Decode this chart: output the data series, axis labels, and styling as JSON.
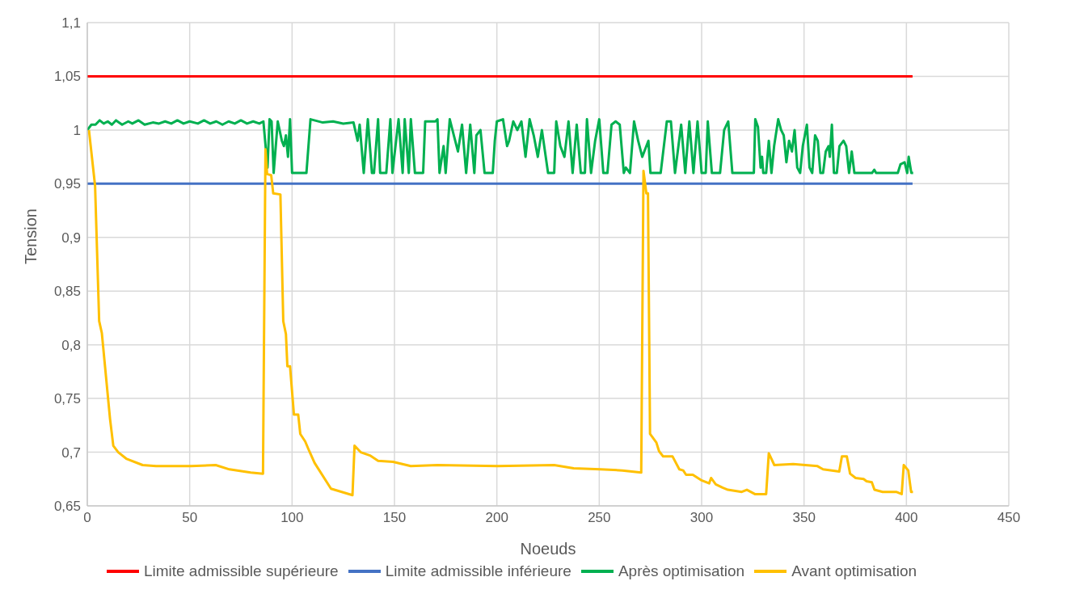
{
  "chart_data": {
    "type": "line",
    "xlabel": "Noeuds",
    "ylabel": "Tension",
    "xlim": [
      0,
      450
    ],
    "xticks": [
      0,
      50,
      100,
      150,
      200,
      250,
      300,
      350,
      400,
      450
    ],
    "ylim": [
      0.65,
      1.1
    ],
    "yticks": [
      {
        "value": 0.65,
        "label": "0,65"
      },
      {
        "value": 0.7,
        "label": "0,7"
      },
      {
        "value": 0.75,
        "label": "0,75"
      },
      {
        "value": 0.8,
        "label": "0,8"
      },
      {
        "value": 0.85,
        "label": "0,85"
      },
      {
        "value": 0.9,
        "label": "0,9"
      },
      {
        "value": 0.95,
        "label": "0,95"
      },
      {
        "value": 1,
        "label": "1"
      },
      {
        "value": 1.05,
        "label": "1,05"
      },
      {
        "value": 1.1,
        "label": "1,1"
      }
    ],
    "grid": true,
    "legend": "bottom",
    "marker": "none",
    "line_style": "solid",
    "series": [
      {
        "name": "Limite admissible supérieure",
        "color": "#ff0000",
        "x": [
          0,
          403
        ],
        "values": [
          1.05,
          1.05
        ]
      },
      {
        "name": "Limite admissible inférieure",
        "color": "#4472c4",
        "x": [
          0,
          403
        ],
        "values": [
          0.95,
          0.95
        ]
      },
      {
        "name": "Après optimisation",
        "color": "#00b050",
        "x": [
          0,
          2,
          4,
          6,
          8,
          10,
          12,
          14,
          17,
          20,
          22,
          25,
          28,
          32,
          35,
          38,
          41,
          44,
          47,
          50,
          54,
          57,
          60,
          63,
          66,
          69,
          72,
          75,
          78,
          81,
          84,
          86,
          88,
          89,
          90,
          91,
          93,
          95,
          96,
          97,
          98,
          99,
          100,
          107,
          109,
          115,
          120,
          125,
          130,
          132,
          133,
          135,
          137,
          139,
          140,
          142,
          143,
          146,
          148,
          149,
          152,
          154,
          155,
          157,
          158,
          160,
          164,
          165,
          170,
          171,
          172,
          174,
          175,
          177,
          179,
          181,
          183,
          185,
          187,
          189,
          190,
          192,
          194,
          198,
          199,
          200,
          203,
          205,
          206,
          208,
          210,
          212,
          214,
          216,
          218,
          220,
          222,
          225,
          228,
          229,
          231,
          233,
          235,
          237,
          239,
          241,
          243,
          244,
          246,
          248,
          250,
          252,
          254,
          256,
          258,
          260,
          262,
          263,
          265,
          267,
          269,
          271,
          272,
          274,
          275,
          280,
          283,
          285,
          287,
          290,
          292,
          294,
          296,
          298,
          300,
          302,
          303,
          305,
          307,
          309,
          311,
          313,
          315,
          325.5,
          326.2,
          327.5,
          328.8,
          329.5,
          330.1,
          331.5,
          332.8,
          334.1,
          335.4,
          337.4,
          338.8,
          340.1,
          341.4,
          342.7,
          344.1,
          345.4,
          346.7,
          348.1,
          349.4,
          351.4,
          352.7,
          354,
          355.4,
          356.7,
          358,
          359.3,
          360.6,
          362,
          362.6,
          363.6,
          364.6,
          366,
          367.3,
          369.3,
          370.6,
          372,
          373.3,
          374.6,
          383.2,
          384.3,
          385.2,
          395.8,
          397.1,
          399.1,
          400.4,
          401.1,
          402.4,
          403.3
        ],
        "values": [
          1.0,
          1.005,
          1.005,
          1.009,
          1.006,
          1.008,
          1.005,
          1.009,
          1.005,
          1.008,
          1.006,
          1.009,
          1.005,
          1.007,
          1.006,
          1.008,
          1.006,
          1.009,
          1.006,
          1.008,
          1.006,
          1.009,
          1.006,
          1.008,
          1.005,
          1.008,
          1.006,
          1.009,
          1.006,
          1.008,
          1.006,
          1.008,
          0.965,
          1.01,
          1.008,
          0.96,
          1.008,
          0.99,
          0.985,
          0.995,
          0.975,
          1.01,
          0.96,
          0.96,
          1.01,
          1.007,
          1.008,
          1.006,
          1.007,
          0.99,
          1.005,
          0.96,
          1.01,
          0.96,
          0.96,
          1.01,
          0.96,
          0.96,
          1.01,
          0.96,
          1.01,
          0.96,
          1.01,
          0.96,
          1.01,
          0.96,
          0.96,
          1.008,
          1.008,
          1.01,
          0.96,
          0.985,
          0.96,
          1.01,
          0.995,
          0.98,
          1.005,
          0.96,
          1.005,
          0.96,
          0.995,
          1.0,
          0.96,
          0.96,
          0.99,
          1.008,
          1.01,
          0.985,
          0.99,
          1.008,
          1.0,
          1.008,
          0.975,
          1.01,
          0.995,
          0.975,
          1.0,
          0.96,
          0.96,
          1.008,
          0.985,
          0.975,
          1.008,
          0.96,
          1.005,
          0.96,
          0.96,
          1.01,
          0.96,
          0.99,
          1.01,
          0.96,
          0.96,
          1.005,
          1.008,
          1.005,
          0.96,
          0.965,
          0.96,
          1.008,
          0.99,
          0.975,
          0.98,
          0.99,
          0.96,
          0.96,
          1.008,
          1.008,
          0.96,
          1.005,
          0.96,
          1.008,
          0.96,
          1.008,
          0.96,
          0.96,
          1.008,
          0.96,
          0.96,
          0.96,
          1.0,
          1.008,
          0.96,
          0.96,
          1.01,
          1.003,
          0.965,
          0.975,
          0.96,
          0.96,
          0.99,
          0.96,
          0.985,
          1.01,
          1.0,
          0.995,
          0.97,
          0.99,
          0.98,
          1.0,
          0.965,
          0.96,
          0.985,
          1.005,
          0.965,
          0.96,
          0.995,
          0.99,
          0.96,
          0.96,
          0.98,
          0.985,
          0.975,
          1.005,
          0.96,
          0.96,
          0.985,
          0.99,
          0.985,
          0.96,
          0.98,
          0.96,
          0.96,
          0.963,
          0.96,
          0.96,
          0.968,
          0.97,
          0.96,
          0.975,
          0.96,
          0.96
        ]
      },
      {
        "name": "Avant optimisation",
        "color": "#ffc000",
        "x": [
          0.8,
          3.8,
          5.8,
          7.1,
          11.1,
          12.7,
          15.1,
          19,
          27,
          33.6,
          50.8,
          62.7,
          69.4,
          79.8,
          85.8,
          87,
          87.8,
          89.8,
          90.8,
          94.3,
          95.7,
          97,
          97.7,
          99,
          100.9,
          103,
          104,
          106.4,
          108.4,
          111,
          119,
          129.5,
          130.5,
          133.5,
          138,
          142,
          149.3,
          158,
          171,
          200.4,
          228,
          237.5,
          250.6,
          261.3,
          270.5,
          271.6,
          273,
          273.8,
          274.8,
          277.9,
          279.2,
          281.2,
          285.8,
          289.1,
          291,
          292.4,
          295.7,
          299.7,
          303.7,
          304.6,
          306.9,
          310.2,
          312.8,
          319.6,
          322.1,
          326,
          331.5,
          332.8,
          335.5,
          344.7,
          356.6,
          359.3,
          367.2,
          368.5,
          370.9,
          372.5,
          375.2,
          379.1,
          380.5,
          383.1,
          384.4,
          388.4,
          395,
          397.7,
          398.7,
          400.9,
          402.3,
          403.2
        ],
        "values": [
          1.0,
          0.948,
          0.822,
          0.811,
          0.731,
          0.706,
          0.7,
          0.694,
          0.688,
          0.687,
          0.687,
          0.688,
          0.684,
          0.681,
          0.68,
          0.982,
          0.959,
          0.958,
          0.941,
          0.94,
          0.822,
          0.81,
          0.78,
          0.78,
          0.735,
          0.735,
          0.717,
          0.71,
          0.701,
          0.69,
          0.666,
          0.66,
          0.706,
          0.7,
          0.697,
          0.692,
          0.691,
          0.687,
          0.688,
          0.687,
          0.688,
          0.685,
          0.684,
          0.683,
          0.681,
          0.962,
          0.941,
          0.941,
          0.717,
          0.709,
          0.701,
          0.696,
          0.696,
          0.684,
          0.683,
          0.679,
          0.679,
          0.674,
          0.671,
          0.676,
          0.67,
          0.667,
          0.665,
          0.663,
          0.665,
          0.661,
          0.661,
          0.699,
          0.688,
          0.689,
          0.687,
          0.684,
          0.682,
          0.696,
          0.696,
          0.68,
          0.676,
          0.675,
          0.673,
          0.672,
          0.665,
          0.663,
          0.663,
          0.661,
          0.688,
          0.683,
          0.663,
          0.663
        ]
      }
    ]
  }
}
